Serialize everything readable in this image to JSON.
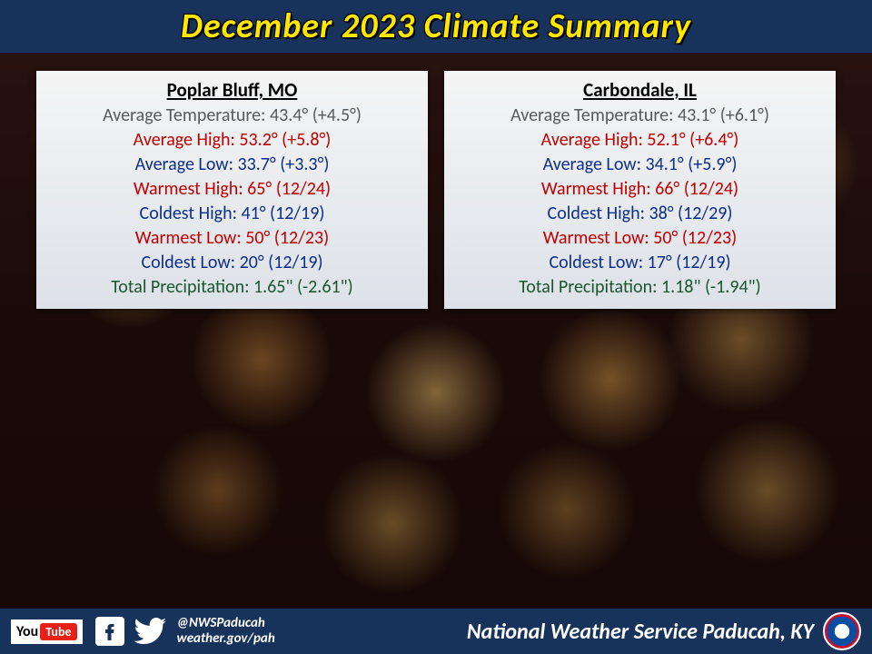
{
  "header": {
    "title": "December 2023 Climate Summary"
  },
  "colors": {
    "header_bg": "#17335c",
    "title_color": "#ffe800",
    "card_bg_top": "#f5f5f5",
    "card_bg_bottom": "#dde2e8",
    "gray": "#595959",
    "red": "#c00000",
    "blue": "#0d2e8a",
    "green": "#1a5632"
  },
  "cards": [
    {
      "city": "Poplar Bluff, MO",
      "stats": [
        {
          "label": "Average Temperature",
          "value": "43.4°",
          "anomaly": "(+4.5°)",
          "color": "gray"
        },
        {
          "label": "Average High",
          "value": "53.2°",
          "anomaly": "(+5.8°)",
          "color": "red"
        },
        {
          "label": "Average Low",
          "value": "33.7°",
          "anomaly": "(+3.3°)",
          "color": "blue"
        },
        {
          "label": "Warmest High",
          "value": "65°",
          "anomaly": "(12/24)",
          "color": "red"
        },
        {
          "label": "Coldest High",
          "value": "41°",
          "anomaly": "(12/19)",
          "color": "blue"
        },
        {
          "label": "Warmest Low",
          "value": "50°",
          "anomaly": "(12/23)",
          "color": "red"
        },
        {
          "label": "Coldest Low",
          "value": "20°",
          "anomaly": "(12/19)",
          "color": "blue"
        },
        {
          "label": "Total Precipitation",
          "value": "1.65\"",
          "anomaly": "(-2.61\")",
          "color": "green"
        }
      ]
    },
    {
      "city": "Carbondale, IL",
      "stats": [
        {
          "label": "Average Temperature",
          "value": "43.1°",
          "anomaly": "(+6.1°)",
          "color": "gray"
        },
        {
          "label": "Average High",
          "value": "52.1°",
          "anomaly": "(+6.4°)",
          "color": "red"
        },
        {
          "label": "Average Low",
          "value": "34.1°",
          "anomaly": "(+5.9°)",
          "color": "blue"
        },
        {
          "label": "Warmest High",
          "value": "66°",
          "anomaly": "(12/24)",
          "color": "red"
        },
        {
          "label": "Coldest High",
          "value": "38°",
          "anomaly": "(12/29)",
          "color": "blue"
        },
        {
          "label": "Warmest Low",
          "value": "50°",
          "anomaly": "(12/23)",
          "color": "red"
        },
        {
          "label": "Coldest Low",
          "value": "17°",
          "anomaly": "(12/19)",
          "color": "blue"
        },
        {
          "label": "Total Precipitation",
          "value": "1.18\"",
          "anomaly": "(-1.94\")",
          "color": "green"
        }
      ]
    }
  ],
  "footer": {
    "youtube_label": "You",
    "youtube_tube": "Tube",
    "handle": "@NWSPaducah",
    "url": "weather.gov/pah",
    "org": "National Weather Service Paducah, KY"
  }
}
